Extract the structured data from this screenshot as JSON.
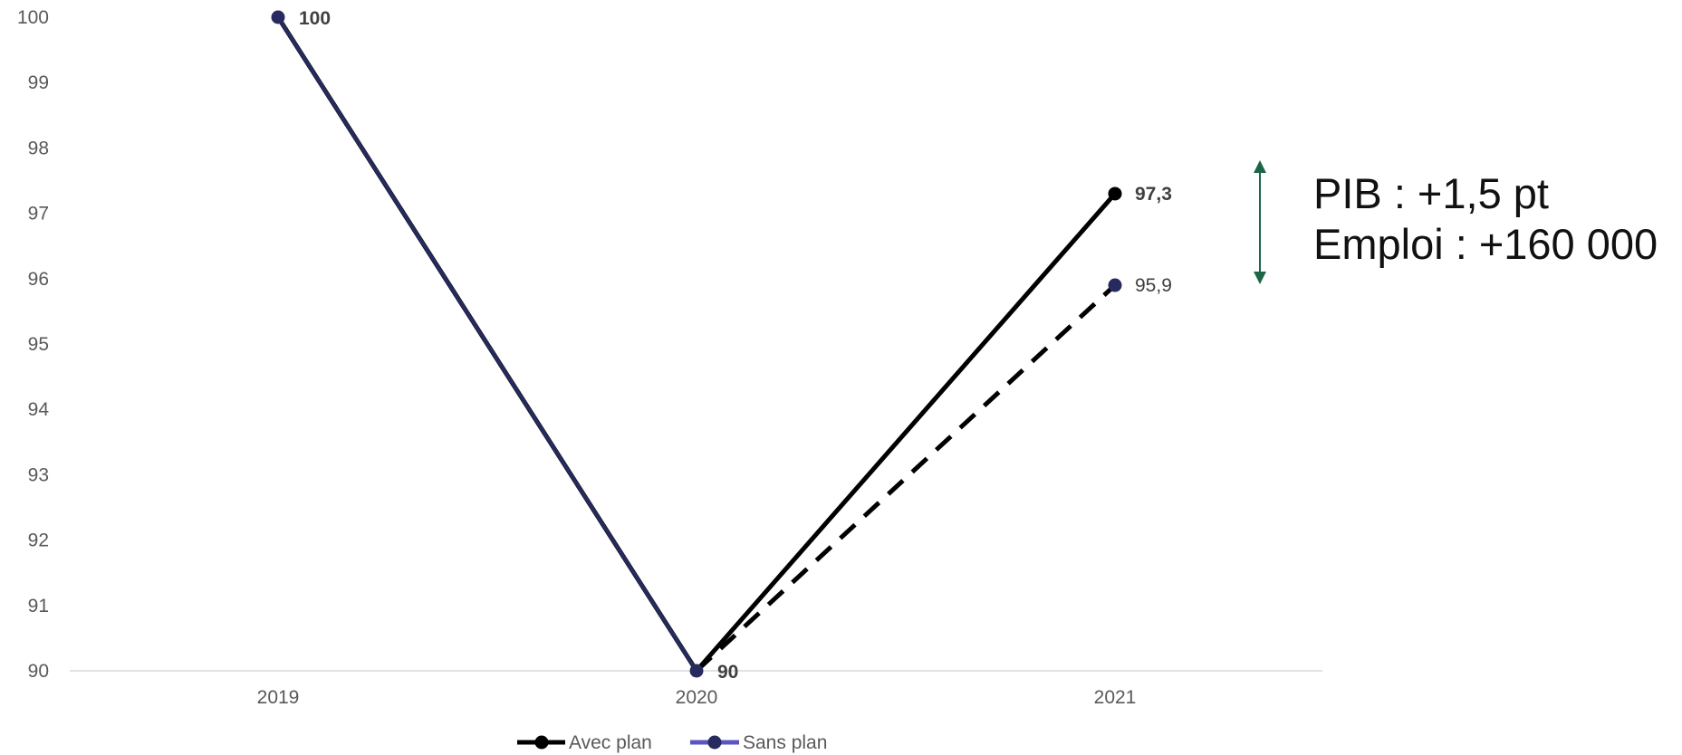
{
  "chart_data": {
    "type": "line",
    "title": "",
    "xlabel": "",
    "ylabel": "",
    "categories": [
      "2019",
      "2020",
      "2021"
    ],
    "ylim": [
      90,
      100
    ],
    "yticks": [
      "100",
      "99",
      "98",
      "97",
      "96",
      "95",
      "94",
      "93",
      "92",
      "91",
      "90"
    ],
    "grid": false,
    "legend_position": "bottom",
    "series": [
      {
        "name": "Avec plan",
        "values": [
          100,
          90,
          97.3
        ],
        "labels": [
          "100",
          "90",
          "97,3"
        ],
        "line_color": "#000000",
        "marker_color": "#000000",
        "legend_color": "#000000",
        "line_style": "solid"
      },
      {
        "name": "Sans plan",
        "values": [
          100,
          90,
          95.9
        ],
        "labels": [
          "",
          "",
          "95,9"
        ],
        "line_color": "#000000",
        "first_segment_color": "#262a5e",
        "marker_color": "#262a5e",
        "legend_color": "#5a55c0",
        "line_style": "dashed"
      }
    ],
    "arrow_color": "#1c6647",
    "axis_line_color": "#d9d9d9",
    "tick_text_color": "#595959",
    "label_text_color": "#404040"
  },
  "annotation": {
    "line1": "PIB : +1,5 pt",
    "line2": "Emploi : +160 000"
  }
}
